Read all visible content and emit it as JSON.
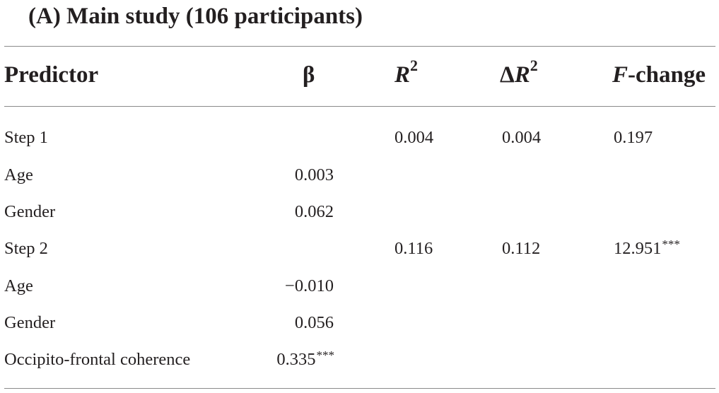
{
  "caption": "(A) Main study (106 participants)",
  "headers": {
    "predictor": "Predictor",
    "beta": "β",
    "r2_main": "R",
    "r2_sup": "2",
    "dr2_delta": "Δ",
    "dr2_main": "R",
    "dr2_sup": "2",
    "fchange_italic": "F",
    "fchange_rest": "-change"
  },
  "rows": [
    {
      "predictor": "Step 1",
      "beta": "",
      "beta_stars": "",
      "r2": "0.004",
      "dr2": "0.004",
      "fchange": "0.197",
      "fchange_stars": ""
    },
    {
      "predictor": "Age",
      "beta": "0.003",
      "beta_stars": "",
      "r2": "",
      "dr2": "",
      "fchange": "",
      "fchange_stars": ""
    },
    {
      "predictor": "Gender",
      "beta": "0.062",
      "beta_stars": "",
      "r2": "",
      "dr2": "",
      "fchange": "",
      "fchange_stars": ""
    },
    {
      "predictor": "Step 2",
      "beta": "",
      "beta_stars": "",
      "r2": "0.116",
      "dr2": "0.112",
      "fchange": "12.951",
      "fchange_stars": "***"
    },
    {
      "predictor": "Age",
      "beta": "−0.010",
      "beta_stars": "",
      "r2": "",
      "dr2": "",
      "fchange": "",
      "fchange_stars": ""
    },
    {
      "predictor": "Gender",
      "beta": "0.056",
      "beta_stars": "",
      "r2": "",
      "dr2": "",
      "fchange": "",
      "fchange_stars": ""
    },
    {
      "predictor": "Occipito-frontal coherence",
      "beta": "0.335",
      "beta_stars": "***",
      "r2": "",
      "dr2": "",
      "fchange": "",
      "fchange_stars": ""
    }
  ]
}
